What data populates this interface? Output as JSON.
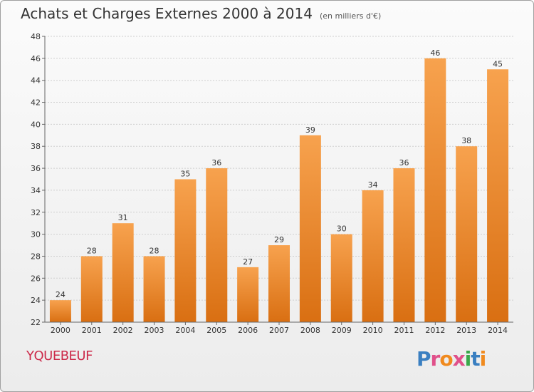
{
  "header": {
    "title": "Achats et Charges Externes 2000 à 2014",
    "subtitle": "(en milliers d'€)"
  },
  "footer": {
    "commune": "YQUEBEUF",
    "logo_letters": [
      "P",
      "r",
      "o",
      "x",
      "i",
      "t",
      "i"
    ],
    "logo_colors": [
      "#3a7fc1",
      "#e0508a",
      "#f08a1e",
      "#e0508a",
      "#3aa84a",
      "#3a7fc1",
      "#f08a1e"
    ]
  },
  "colors": {
    "bar_light": "#f7a24e",
    "bar_dark": "#d96f12",
    "grid": "#cfcfcf",
    "axis": "#666666",
    "text": "#333333"
  },
  "chart_data": {
    "type": "bar",
    "title": "Achats et Charges Externes 2000 à 2014",
    "subtitle": "(en milliers d'€)",
    "categories": [
      "2000",
      "2001",
      "2002",
      "2003",
      "2004",
      "2005",
      "2006",
      "2007",
      "2008",
      "2009",
      "2010",
      "2011",
      "2012",
      "2013",
      "2014"
    ],
    "values": [
      24,
      28,
      31,
      28,
      35,
      36,
      27,
      29,
      39,
      30,
      34,
      36,
      46,
      38,
      45
    ],
    "ylim": [
      22,
      48
    ],
    "yticks": [
      22,
      24,
      26,
      28,
      30,
      32,
      34,
      36,
      38,
      40,
      42,
      44,
      46,
      48
    ],
    "grid": true,
    "data_labels": true
  }
}
